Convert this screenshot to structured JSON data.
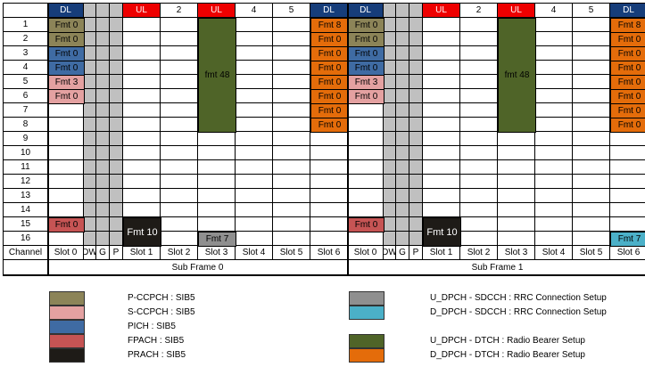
{
  "colors": {
    "pccpch": "#8c8458",
    "sccpch": "#e4a1a1",
    "pich": "#3f6ba3",
    "fpach": "#c65454",
    "prach": "#1e1b17",
    "u_sdcch": "#8f8f8f",
    "d_sdcch": "#4bb0c8",
    "u_dtch": "#4f6428",
    "d_dtch": "#e46c0a",
    "dl_header": "#163d7a",
    "ul_header": "#ee0000",
    "gap": "#c0c0c0"
  },
  "header": {
    "dl": "DL",
    "ul": "UL",
    "col2": "2",
    "col4": "4",
    "col5": "5"
  },
  "footer": {
    "channel": "Channel",
    "slot0": "Slot 0",
    "dw": "DW",
    "g": "G",
    "p": "P",
    "slot1": "Slot 1",
    "slot2": "Slot 2",
    "slot3": "Slot 3",
    "slot4": "Slot 4",
    "slot5": "Slot 5",
    "slot6": "Slot 6",
    "subframe0": "Sub Frame 0",
    "subframe1": "Sub Frame 1"
  },
  "rows": [
    "1",
    "2",
    "3",
    "4",
    "5",
    "6",
    "7",
    "8",
    "9",
    "10",
    "11",
    "12",
    "13",
    "14",
    "15",
    "16"
  ],
  "subframes": [
    {
      "slot0": [
        {
          "label": "Fmt 0",
          "color": "pccpch"
        },
        {
          "label": "Fmt 0",
          "color": "pccpch"
        },
        {
          "label": "Fmt 0",
          "color": "pich"
        },
        {
          "label": "Fmt 0",
          "color": "pich"
        },
        {
          "label": "Fmt 3",
          "color": "sccpch"
        },
        {
          "label": "Fmt 0",
          "color": "sccpch"
        },
        {
          "label": "Fmt 0",
          "color": "fpach",
          "row": 15
        }
      ],
      "slot1_block": {
        "label": "Fmt 10",
        "color": "prach"
      },
      "slot3_block": {
        "label": "fmt 48",
        "color": "u_dtch"
      },
      "slot3_bottom": {
        "label": "Fmt 7",
        "color": "u_sdcch"
      },
      "slot6": [
        "Fmt 8",
        "Fmt 0",
        "Fmt 0",
        "Fmt 0",
        "Fmt 0",
        "Fmt 0",
        "Fmt 0",
        "Fmt 0"
      ],
      "slot6_bottom": null
    },
    {
      "slot0": [
        {
          "label": "Fmt 0",
          "color": "pccpch"
        },
        {
          "label": "Fmt 0",
          "color": "pccpch"
        },
        {
          "label": "Fmt 0",
          "color": "pich"
        },
        {
          "label": "Fmt 0",
          "color": "pich"
        },
        {
          "label": "Fmt 3",
          "color": "sccpch"
        },
        {
          "label": "Fmt 0",
          "color": "sccpch"
        },
        {
          "label": "Fmt 0",
          "color": "fpach",
          "row": 15
        }
      ],
      "slot1_block": {
        "label": "Fmt 10",
        "color": "prach"
      },
      "slot3_block": {
        "label": "fmt 48",
        "color": "u_dtch"
      },
      "slot3_bottom": null,
      "slot6": [
        "Fmt 8",
        "Fmt 0",
        "Fmt 0",
        "Fmt 0",
        "Fmt 0",
        "Fmt 0",
        "Fmt 0",
        "Fmt 0"
      ],
      "slot6_bottom": {
        "label": "Fmt 7",
        "color": "d_sdcch"
      }
    }
  ],
  "legend": {
    "left": [
      {
        "label": "P-CCPCH : SIB5",
        "color": "pccpch"
      },
      {
        "label": "S-CCPCH : SIB5",
        "color": "sccpch"
      },
      {
        "label": "PICH : SIB5",
        "color": "pich"
      },
      {
        "label": "FPACH : SIB5",
        "color": "fpach"
      },
      {
        "label": "PRACH : SIB5",
        "color": "prach"
      }
    ],
    "right": [
      {
        "label": "U_DPCH - SDCCH : RRC Connection Setup",
        "color": "u_sdcch"
      },
      {
        "label": "D_DPCH - SDCCH : RRC Connection Setup",
        "color": "d_sdcch"
      },
      {
        "label": "U_DPCH - DTCH : Radio Bearer Setup",
        "color": "u_dtch"
      },
      {
        "label": "D_DPCH - DTCH : Radio Bearer Setup",
        "color": "d_dtch"
      }
    ]
  }
}
